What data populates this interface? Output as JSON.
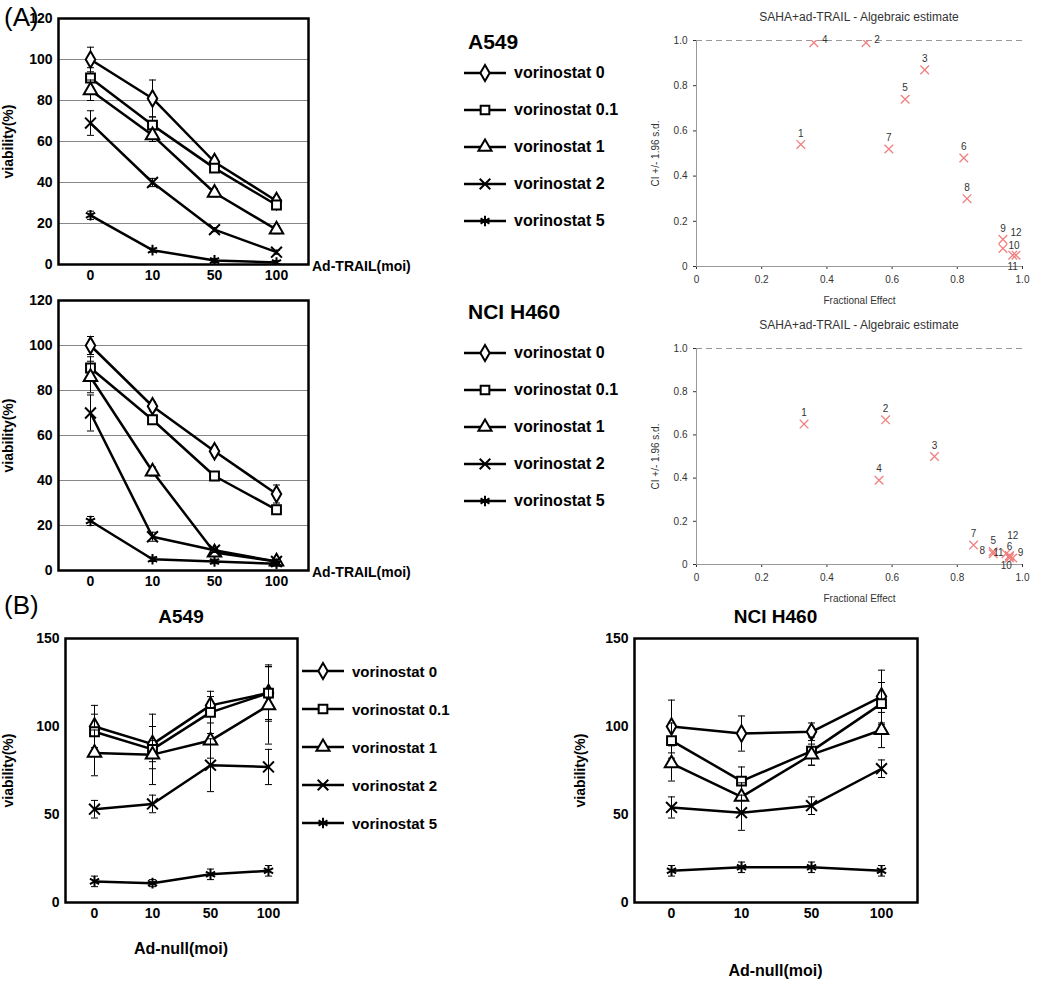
{
  "chart_data": [
    {
      "type": "line",
      "panel_label": "(A)",
      "title": "A549",
      "x_label": "Ad-TRAIL(moi)",
      "y_label": "viability(%)",
      "categories": [
        0,
        10,
        50,
        100
      ],
      "ylim": [
        0,
        120
      ],
      "yticks": [
        0,
        20,
        40,
        60,
        80,
        100,
        120
      ],
      "grid": true,
      "legend": "right",
      "series": [
        {
          "name": "vorinostat 0",
          "color": "#000000",
          "marker": "diamond",
          "values": [
            100,
            81,
            50,
            31
          ],
          "errors": [
            6,
            9,
            2,
            2
          ]
        },
        {
          "name": "vorinostat 0.1",
          "color": "#000000",
          "marker": "square",
          "values": [
            91,
            68,
            47,
            29
          ],
          "errors": [
            5,
            4,
            2,
            2
          ]
        },
        {
          "name": "vorinostat 1",
          "color": "#000000",
          "marker": "triangle",
          "values": [
            85,
            63,
            35,
            17
          ],
          "errors": [
            5,
            3,
            2,
            2
          ]
        },
        {
          "name": "vorinostat 2",
          "color": "#000000",
          "marker": "times",
          "values": [
            69,
            40,
            17,
            6
          ],
          "errors": [
            6,
            2,
            1,
            1
          ]
        },
        {
          "name": "vorinostat 5",
          "color": "#000000",
          "marker": "asterisk",
          "values": [
            24,
            7,
            2,
            1
          ],
          "errors": [
            2,
            1,
            1,
            1
          ]
        }
      ]
    },
    {
      "type": "scatter",
      "title": "SAHA+ad-TRAIL - Algebraic estimate",
      "x_label": "Fractional Effect",
      "y_label": "CI +/- 1.96 s.d.",
      "x": [
        0.32,
        0.52,
        0.7,
        0.36,
        0.64,
        0.82,
        0.59,
        0.83,
        0.94,
        0.94,
        0.97,
        0.98
      ],
      "values": [
        0.54,
        0.99,
        0.87,
        0.99,
        0.74,
        0.48,
        0.52,
        0.3,
        0.12,
        0.08,
        0.05,
        0.05
      ],
      "point_labels": [
        "1",
        "2",
        "3",
        "4",
        "5",
        "6",
        "7",
        "8",
        "9",
        "10",
        "11",
        "12"
      ],
      "color": "#f08080",
      "marker": "times",
      "grid": false,
      "xlim": [
        0,
        1
      ],
      "xticks": [
        0,
        0.2,
        0.4,
        0.6,
        0.8,
        {
          "value": 1,
          "label": "1.0"
        }
      ],
      "ylim": [
        0,
        1
      ],
      "yticks": [
        0,
        0.2,
        0.4,
        0.6,
        0.8,
        {
          "value": 1,
          "label": "1.0"
        }
      ],
      "reference_line": {
        "value": 1,
        "line_style": "dashed"
      }
    },
    {
      "type": "line",
      "title": "NCI H460",
      "x_label": "Ad-TRAIL(moi)",
      "y_label": "viability(%)",
      "categories": [
        0,
        10,
        50,
        100
      ],
      "ylim": [
        0,
        120
      ],
      "yticks": [
        0,
        20,
        40,
        60,
        80,
        100,
        120
      ],
      "grid": true,
      "legend": "right",
      "series": [
        {
          "name": "vorinostat 0",
          "color": "#000000",
          "marker": "diamond",
          "values": [
            100,
            73,
            53,
            34
          ],
          "errors": [
            4,
            2,
            2,
            4
          ]
        },
        {
          "name": "vorinostat 0.1",
          "color": "#000000",
          "marker": "square",
          "values": [
            90,
            67,
            42,
            27
          ],
          "errors": [
            5,
            2,
            2,
            2
          ]
        },
        {
          "name": "vorinostat 1",
          "color": "#000000",
          "marker": "triangle",
          "values": [
            86,
            44,
            8,
            4
          ],
          "errors": [
            7,
            2,
            1,
            1
          ]
        },
        {
          "name": "vorinostat 2",
          "color": "#000000",
          "marker": "times",
          "values": [
            70,
            15,
            9,
            4
          ],
          "errors": [
            8,
            2,
            1,
            1
          ]
        },
        {
          "name": "vorinostat 5",
          "color": "#000000",
          "marker": "asterisk",
          "values": [
            22,
            5,
            4,
            3
          ],
          "errors": [
            2,
            1,
            1,
            1
          ]
        }
      ]
    },
    {
      "type": "scatter",
      "title": "SAHA+ad-TRAIL - Algebraic estimate",
      "x_label": "Fractional Effect",
      "y_label": "CI +/- 1.96 s.d.",
      "x": [
        0.33,
        0.58,
        0.73,
        0.56,
        0.91,
        0.96,
        0.85,
        0.91,
        0.96,
        0.95,
        0.96,
        0.97
      ],
      "values": [
        0.65,
        0.67,
        0.5,
        0.39,
        0.06,
        0.03,
        0.09,
        0.05,
        0.04,
        0.05,
        0.04,
        0.03
      ],
      "point_labels": [
        "1",
        "2",
        "3",
        "4",
        "5",
        "6",
        "7",
        "8",
        "9",
        "10",
        "11",
        "12"
      ],
      "color": "#f08080",
      "marker": "times",
      "grid": false,
      "xlim": [
        0,
        1
      ],
      "xticks": [
        0,
        0.2,
        0.4,
        0.6,
        0.8,
        {
          "value": 1,
          "label": "1.0"
        }
      ],
      "ylim": [
        0,
        1
      ],
      "yticks": [
        0,
        0.2,
        0.4,
        0.6,
        0.8,
        {
          "value": 1,
          "label": "1.0"
        }
      ],
      "reference_line": {
        "value": 1,
        "line_style": "dashed"
      }
    },
    {
      "type": "line",
      "panel_label": "(B)",
      "title": "A549",
      "x_label": "Ad-null(moi)",
      "y_label": "viability(%)",
      "categories": [
        0,
        10,
        50,
        100
      ],
      "ylim": [
        0,
        150
      ],
      "yticks": [
        0,
        50,
        100,
        150
      ],
      "grid": false,
      "legend": "right",
      "series": [
        {
          "name": "vorinostat 0",
          "color": "#000000",
          "marker": "diamond",
          "values": [
            100,
            90,
            112,
            119
          ],
          "errors": [
            12,
            10,
            5,
            15
          ]
        },
        {
          "name": "vorinostat 0.1",
          "color": "#000000",
          "marker": "square",
          "values": [
            97,
            87,
            108,
            119
          ],
          "errors": [
            10,
            20,
            12,
            16
          ]
        },
        {
          "name": "vorinostat 1",
          "color": "#000000",
          "marker": "triangle",
          "values": [
            85,
            84,
            92,
            112
          ],
          "errors": [
            13,
            8,
            10,
            22
          ]
        },
        {
          "name": "vorinostat 2",
          "color": "#000000",
          "marker": "times",
          "values": [
            53,
            56,
            78,
            77
          ],
          "errors": [
            5,
            5,
            15,
            10
          ]
        },
        {
          "name": "vorinostat 5",
          "color": "#000000",
          "marker": "asterisk",
          "values": [
            12,
            11,
            16,
            18
          ],
          "errors": [
            3,
            2,
            3,
            3
          ]
        }
      ]
    },
    {
      "type": "line",
      "title": "NCI H460",
      "x_label": "Ad-null(moi)",
      "y_label": "viability(%)",
      "categories": [
        0,
        10,
        50,
        100
      ],
      "ylim": [
        0,
        150
      ],
      "yticks": [
        0,
        50,
        100,
        150
      ],
      "grid": false,
      "series": [
        {
          "name": "vorinostat 0",
          "color": "#000000",
          "marker": "diamond",
          "values": [
            100,
            96,
            97,
            117
          ],
          "errors": [
            15,
            10,
            5,
            15
          ]
        },
        {
          "name": "vorinostat 0.1",
          "color": "#000000",
          "marker": "square",
          "values": [
            92,
            69,
            86,
            113
          ],
          "errors": [
            10,
            8,
            8,
            12
          ]
        },
        {
          "name": "vorinostat 1",
          "color": "#000000",
          "marker": "triangle",
          "values": [
            79,
            60,
            84,
            98
          ],
          "errors": [
            10,
            8,
            6,
            10
          ]
        },
        {
          "name": "vorinostat 2",
          "color": "#000000",
          "marker": "times",
          "values": [
            54,
            51,
            55,
            76
          ],
          "errors": [
            6,
            10,
            5,
            5
          ]
        },
        {
          "name": "vorinostat 5",
          "color": "#000000",
          "marker": "asterisk",
          "values": [
            18,
            20,
            20,
            18
          ],
          "errors": [
            3,
            3,
            3,
            3
          ]
        }
      ]
    }
  ]
}
